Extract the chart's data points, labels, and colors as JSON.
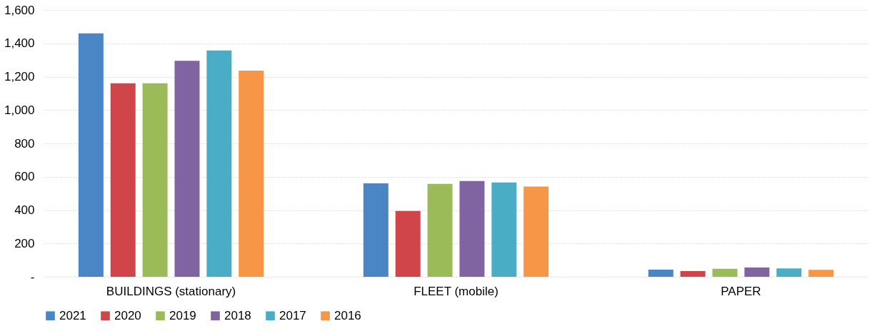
{
  "chart_data": {
    "type": "bar",
    "categories": [
      "BUILDINGS (stationary)",
      "FLEET (mobile)",
      "PAPER"
    ],
    "series": [
      {
        "name": "2021",
        "color": "#4a86c5",
        "values": [
          1460,
          560,
          43
        ]
      },
      {
        "name": "2020",
        "color": "#d0454a",
        "values": [
          1160,
          395,
          34
        ]
      },
      {
        "name": "2019",
        "color": "#9bbb59",
        "values": [
          1160,
          557,
          48
        ]
      },
      {
        "name": "2018",
        "color": "#8064a2",
        "values": [
          1295,
          574,
          56
        ]
      },
      {
        "name": "2017",
        "color": "#4bacc6",
        "values": [
          1357,
          566,
          50
        ]
      },
      {
        "name": "2016",
        "color": "#f79646",
        "values": [
          1236,
          541,
          42
        ]
      }
    ],
    "ylim": [
      0,
      1600
    ],
    "yticks": [
      {
        "value": 0,
        "label": "-"
      },
      200,
      400,
      600,
      {
        "value": 800,
        "label": "800"
      },
      {
        "value": 1000,
        "label": "1,000"
      },
      {
        "value": 1200,
        "label": "1,200"
      },
      {
        "value": 1400,
        "label": "1,400"
      },
      {
        "value": 1600,
        "label": "1,600"
      }
    ],
    "grid": "y",
    "legend": "bottom"
  }
}
